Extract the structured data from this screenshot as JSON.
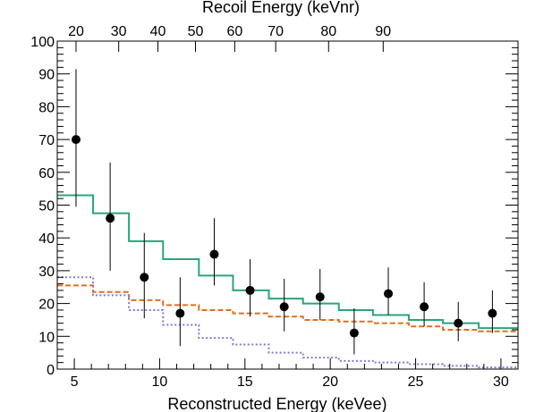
{
  "chart_data": {
    "type": "step",
    "title": "",
    "xlabel": "Reconstructed Energy (keVee)",
    "ylabel": "",
    "x2label": "Recoil Energy (keVnr)",
    "xlim": [
      4.0,
      31.0
    ],
    "ylim": [
      0,
      100
    ],
    "x_ticks": [
      5,
      10,
      15,
      20,
      25,
      30
    ],
    "y_ticks": [
      0,
      10,
      20,
      30,
      40,
      50,
      60,
      70,
      80,
      90,
      100
    ],
    "x2_ticks": [
      {
        "label": "20",
        "x": 5.1
      },
      {
        "label": "30",
        "x": 7.6
      },
      {
        "label": "40",
        "x": 9.9
      },
      {
        "label": "50",
        "x": 12.1
      },
      {
        "label": "60",
        "x": 14.4
      },
      {
        "label": "70",
        "x": 16.8
      },
      {
        "label": "80",
        "x": 19.9
      },
      {
        "label": "90",
        "x": 23.1
      }
    ],
    "bin_edges": [
      4.0,
      6.1,
      8.2,
      10.2,
      12.3,
      14.3,
      16.4,
      18.4,
      20.5,
      22.5,
      24.6,
      26.6,
      28.7,
      31.0
    ],
    "series": [
      {
        "kind": "step",
        "color": "#2aa57a",
        "style": "solid",
        "values": [
          53,
          47.5,
          39,
          33.5,
          28.5,
          24,
          21.5,
          20,
          18,
          16.5,
          15,
          14,
          12.5
        ]
      },
      {
        "kind": "step",
        "color": "#e07020",
        "style": "dashed",
        "values": [
          25.5,
          23.5,
          21,
          19.5,
          18,
          17,
          16,
          15,
          14.5,
          14,
          13,
          12,
          11.5
        ]
      },
      {
        "kind": "step",
        "color": "#7b7bd6",
        "style": "dotted",
        "values": [
          28,
          22.5,
          18,
          13.5,
          9.5,
          7.5,
          5,
          3.5,
          2.5,
          2,
          1.5,
          1,
          0.5
        ]
      },
      {
        "kind": "points",
        "color": "#000000",
        "x": [
          5.1,
          7.1,
          9.1,
          11.2,
          13.2,
          15.3,
          17.3,
          19.4,
          21.4,
          23.4,
          25.5,
          27.5,
          29.5
        ],
        "y": [
          70,
          46,
          28,
          17,
          35,
          24,
          19,
          22,
          11,
          23,
          19,
          14,
          17
        ],
        "err_low": [
          20.5,
          16,
          12.5,
          10,
          9.5,
          8,
          7.5,
          7,
          6.5,
          6.5,
          6,
          5.5,
          6
        ],
        "err_high": [
          21.5,
          17,
          13.5,
          11,
          11,
          9.5,
          8.5,
          8.5,
          7.5,
          8,
          7.5,
          6.5,
          7
        ]
      }
    ]
  }
}
